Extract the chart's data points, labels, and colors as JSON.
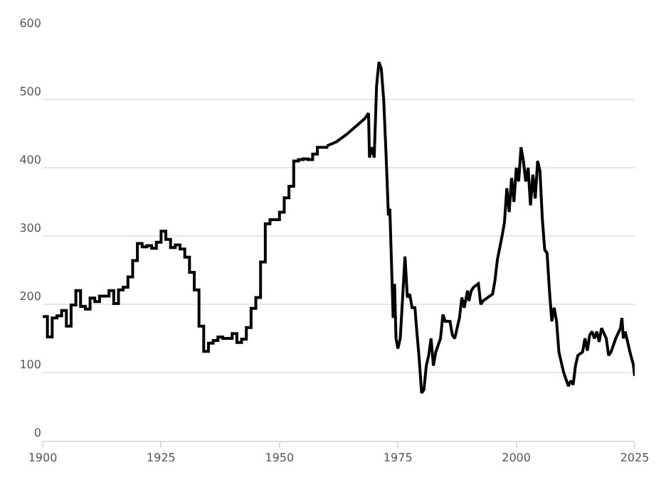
{
  "chart_data": {
    "type": "step",
    "x": [
      1900,
      1901,
      1902,
      1903,
      1904,
      1905,
      1906,
      1907,
      1908,
      1909,
      1910,
      1911,
      1912,
      1913,
      1914,
      1915,
      1916,
      1917,
      1918,
      1919,
      1920,
      1921,
      1922,
      1923,
      1924,
      1925,
      1926,
      1927,
      1928,
      1929,
      1930,
      1931,
      1932,
      1933,
      1934,
      1935,
      1936,
      1937,
      1938,
      1939,
      1940,
      1941,
      1942,
      1943,
      1944,
      1945,
      1946,
      1947,
      1948,
      1949,
      1950,
      1951,
      1952,
      1953,
      1954,
      1955,
      1956,
      1957,
      1958,
      1959,
      1960
    ],
    "series": [
      {
        "color": "#000000",
        "values": [
          182,
          152,
          180,
          183,
          191,
          168,
          199,
          220,
          197,
          193,
          209,
          204,
          212,
          212,
          220,
          201,
          221,
          225,
          240,
          264,
          289,
          284,
          286,
          282,
          291,
          307,
          295,
          283,
          287,
          281,
          269,
          247,
          221,
          168,
          131,
          143,
          147,
          152,
          150,
          150,
          157,
          144,
          149,
          166,
          194,
          210,
          262,
          318,
          324,
          324,
          335,
          356,
          373,
          410,
          412,
          413,
          412,
          420,
          430,
          430,
          432
        ]
      },
      {
        "type": "line",
        "color": "#000000",
        "x": [
          1960,
          1962,
          1964,
          1966,
          1968,
          1968.8,
          1969,
          1969.5,
          1970,
          1970.5,
          1971,
          1971.5,
          1972,
          1972.5,
          1973,
          1973.3,
          1974,
          1974.3,
          1974.6,
          1975,
          1975.5,
          1976,
          1976.5,
          1977,
          1977.5,
          1978,
          1978.6,
          1979,
          1979.5,
          1980,
          1980.5,
          1981,
          1981.5,
          1982,
          1982.5,
          1983,
          1984,
          1984.5,
          1985,
          1986,
          1986.5,
          1987,
          1988,
          1988.5,
          1989,
          1989.7,
          1990,
          1990.5,
          1991,
          1992,
          1992.5,
          1993,
          1994,
          1995,
          1995.5,
          1996,
          1997,
          1997.5,
          1998,
          1998.5,
          1999,
          1999.5,
          2000,
          2000.5,
          2001,
          2001.5,
          2002,
          2002.5,
          2003,
          2003.5,
          2004,
          2004.5,
          2005,
          2005.5,
          2006,
          2006.5,
          2007,
          2007.5,
          2008,
          2008.5,
          2009,
          2009.5,
          2010,
          2011,
          2011.5,
          2012,
          2012.5,
          2013,
          2014,
          2014.5,
          2015,
          2015.5,
          2016,
          2016.5,
          2017,
          2017.5,
          2018,
          2019,
          2019.5,
          2020,
          2021,
          2022,
          2022.3,
          2022.6,
          2023,
          2023.5,
          2024,
          2024.7,
          2025
        ],
        "values": [
          432,
          438,
          448,
          460,
          472,
          480,
          415,
          430,
          415,
          520,
          555,
          545,
          500,
          420,
          330,
          340,
          180,
          230,
          150,
          135,
          150,
          210,
          270,
          210,
          215,
          195,
          195,
          160,
          120,
          70,
          75,
          110,
          125,
          150,
          110,
          130,
          150,
          185,
          175,
          175,
          155,
          150,
          180,
          210,
          195,
          220,
          205,
          220,
          225,
          230,
          200,
          205,
          210,
          215,
          235,
          265,
          300,
          320,
          370,
          335,
          385,
          350,
          400,
          380,
          430,
          410,
          380,
          400,
          345,
          390,
          355,
          410,
          395,
          325,
          280,
          275,
          220,
          175,
          195,
          175,
          130,
          115,
          100,
          80,
          88,
          82,
          110,
          125,
          130,
          150,
          132,
          155,
          160,
          150,
          160,
          145,
          165,
          150,
          125,
          130,
          150,
          165,
          180,
          150,
          160,
          145,
          130,
          112,
          95
        ]
      }
    ],
    "xlim": [
      1900,
      2025
    ],
    "xticks": [
      1900,
      1925,
      1950,
      1975,
      2000,
      2025
    ],
    "ylim": [
      0,
      600
    ],
    "yticks": [
      0,
      100,
      200,
      300,
      400,
      500,
      600
    ],
    "grid": "y"
  }
}
